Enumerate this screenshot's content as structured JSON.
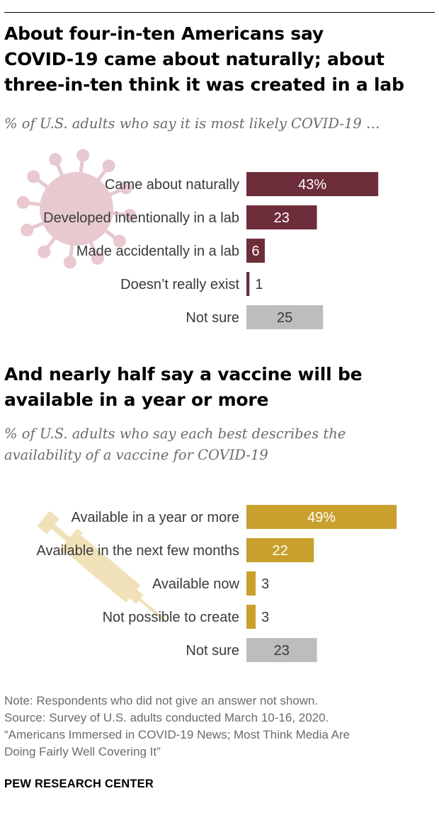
{
  "chart1": {
    "title_lines": [
      "About four-in-ten Americans say",
      "COVID-19 came about naturally; about",
      "three-in-ten think it was created in a lab"
    ],
    "subtitle_lines": [
      "% of U.S. adults who say it is most likely COVID-19 …"
    ],
    "icon": "virus-icon"
  },
  "chart2": {
    "title_lines": [
      "And nearly half say a vaccine will be",
      "available in a year or more"
    ],
    "subtitle_lines": [
      "% of U.S. adults who say each best describes the",
      "availability of a vaccine for COVID-19"
    ],
    "icon": "syringe-icon"
  },
  "chart_data": [
    {
      "type": "bar",
      "orientation": "horizontal",
      "title": "About four-in-ten Americans say COVID-19 came about naturally; about three-in-ten think it was created in a lab",
      "subtitle": "% of U.S. adults who say it is most likely COVID-19 …",
      "categories": [
        "Came about naturally",
        "Developed intentionally in a lab",
        "Made accidentally in a lab",
        "Doesn’t really exist",
        "Not sure"
      ],
      "values": [
        43,
        23,
        6,
        1,
        25
      ],
      "labels": [
        "43%",
        "23",
        "6",
        "1",
        "25"
      ],
      "colors": [
        "#6e2d3a",
        "#6e2d3a",
        "#6e2d3a",
        "#6e2d3a",
        "#bdbdbd"
      ],
      "xlim": [
        0,
        100
      ]
    },
    {
      "type": "bar",
      "orientation": "horizontal",
      "title": "And nearly half say a vaccine will be available in a year or more",
      "subtitle": "% of U.S. adults who say each best describes the availability of a vaccine for COVID-19",
      "categories": [
        "Available in a year or more",
        "Available in the next few months",
        "Available now",
        "Not possible to create",
        "Not sure"
      ],
      "values": [
        49,
        22,
        3,
        3,
        23
      ],
      "labels": [
        "49%",
        "22",
        "3",
        "3",
        "23"
      ],
      "colors": [
        "#c9a02d",
        "#c9a02d",
        "#c9a02d",
        "#c9a02d",
        "#bdbdbd"
      ],
      "xlim": [
        0,
        100
      ]
    }
  ],
  "notes": [
    "Note: Respondents who did not give an answer not shown.",
    "Source: Survey of U.S. adults conducted March 10-16, 2020.",
    "“Americans Immersed in COVID-19 News; Most Think Media Are",
    "Doing Fairly Well Covering It”"
  ],
  "brand": "PEW RESEARCH CENTER"
}
